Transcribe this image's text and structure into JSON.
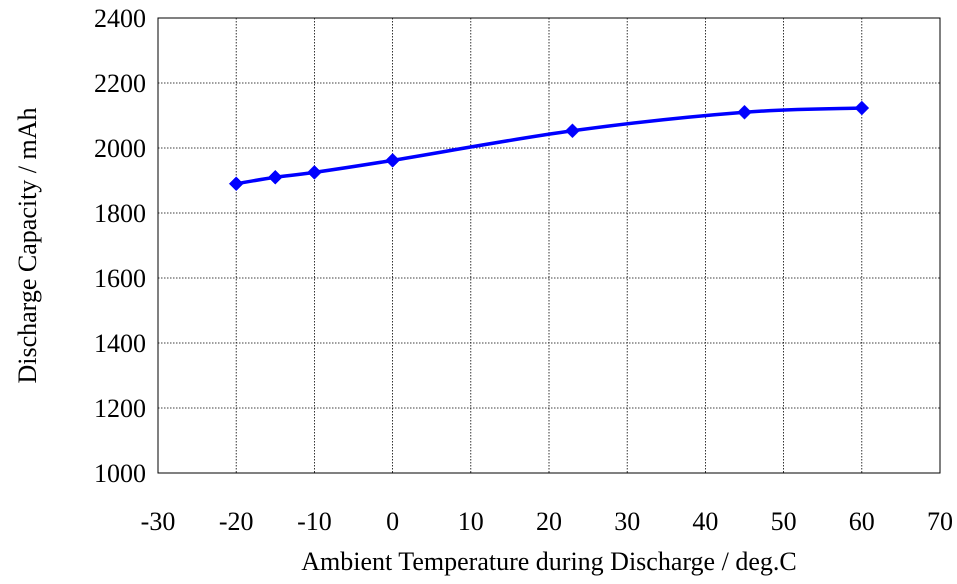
{
  "chart_data": {
    "type": "line",
    "title": "",
    "xlabel": "Ambient Temperature during Discharge / deg.C",
    "ylabel": "Discharge Capacity / mAh",
    "xlim": [
      -30,
      70
    ],
    "ylim": [
      1000,
      2400
    ],
    "x_ticks": [
      -30,
      -20,
      -10,
      0,
      10,
      20,
      30,
      40,
      50,
      60,
      70
    ],
    "y_ticks": [
      1000,
      1200,
      1400,
      1600,
      1800,
      2000,
      2200,
      2400
    ],
    "grid": true,
    "legend": "none",
    "line_color": "#0000ff",
    "marker": "diamond",
    "series": [
      {
        "points": [
          {
            "x": -20,
            "y": 1890
          },
          {
            "x": -15,
            "y": 1910
          },
          {
            "x": -10,
            "y": 1925
          },
          {
            "x": 0,
            "y": 1962
          },
          {
            "x": 23,
            "y": 2053
          },
          {
            "x": 45,
            "y": 2110
          },
          {
            "x": 60,
            "y": 2123
          }
        ]
      }
    ]
  }
}
